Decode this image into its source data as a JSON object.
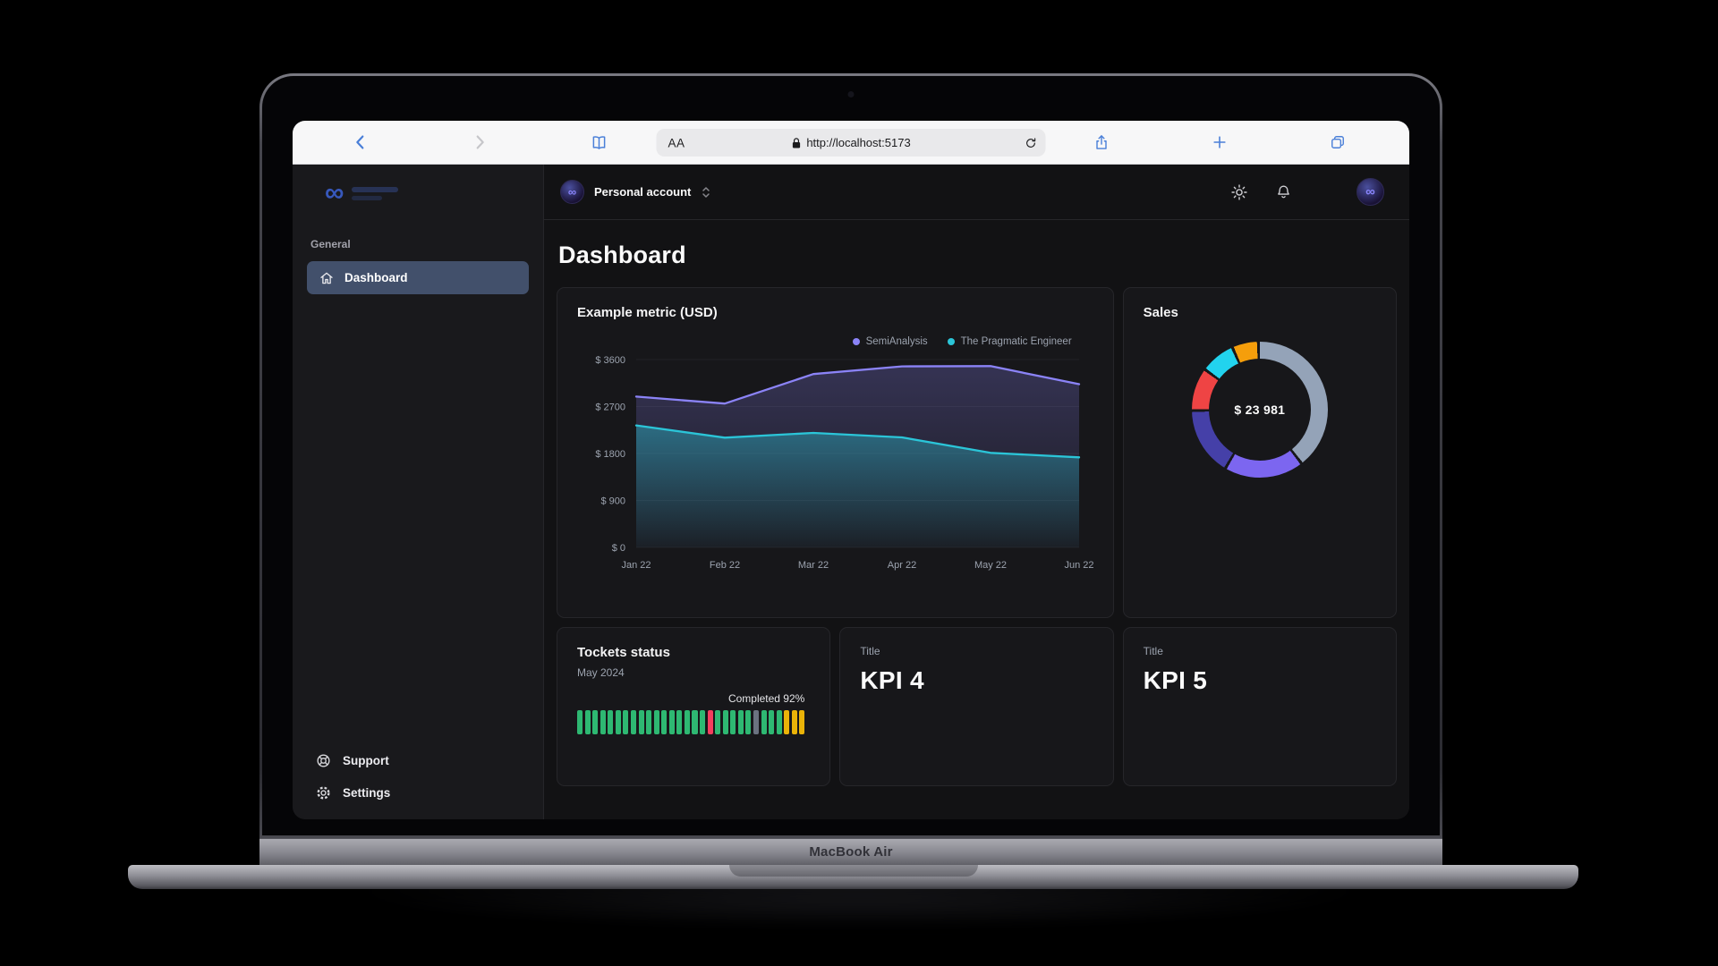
{
  "laptop": {
    "brand_label": "MacBook Air"
  },
  "browser": {
    "reader_label": "AA",
    "url": "http://localhost:5173"
  },
  "sidebar": {
    "section_label": "General",
    "items": [
      {
        "label": "Dashboard",
        "active": true
      }
    ],
    "footer_items": [
      {
        "label": "Support"
      },
      {
        "label": "Settings"
      }
    ]
  },
  "header": {
    "account_label": "Personal account"
  },
  "page": {
    "title": "Dashboard"
  },
  "cards": {
    "metric": {
      "title": "Example metric (USD)"
    },
    "sales": {
      "title": "Sales"
    },
    "tickets": {
      "title": "Tockets status",
      "subtitle": "May 2024",
      "completed_label": "Completed 92%"
    },
    "kpi4": {
      "label": "Title",
      "value": "KPI 4"
    },
    "kpi5": {
      "label": "Title",
      "value": "KPI 5"
    }
  },
  "chart_data": [
    {
      "type": "area",
      "title": "Example metric (USD)",
      "x": [
        "Jan 22",
        "Feb 22",
        "Mar 22",
        "Apr 22",
        "May 22",
        "Jun 22"
      ],
      "series": [
        {
          "name": "SemiAnalysis",
          "values": [
            2890,
            2756,
            3322,
            3470,
            3475,
            3129
          ],
          "color": "#8b83f7",
          "fill_opacity": 0.26
        },
        {
          "name": "The Pragmatic Engineer",
          "values": [
            2338,
            2103,
            2194,
            2108,
            1812,
            1726
          ],
          "color": "#2bc5d8",
          "fill_opacity": 0.42
        }
      ],
      "ylim": [
        0,
        3600
      ],
      "yticks": [
        0,
        900,
        1800,
        2700,
        3600
      ],
      "ytick_prefix": "$ ",
      "grid": true,
      "legend_position": "top-right"
    },
    {
      "type": "donut",
      "title": "Sales",
      "center_label": "$ 23 981",
      "total": 23981,
      "gap_color": "#17171a",
      "values": [
        {
          "value": 9800,
          "color": "#94a3b8"
        },
        {
          "value": 4567,
          "color": "#7c66f0"
        },
        {
          "value": 3908,
          "color": "#4540a8"
        },
        {
          "value": 2400,
          "color": "#ef4444"
        },
        {
          "value": 1908,
          "color": "#22d3ee"
        },
        {
          "value": 1398,
          "color": "#f59e0b"
        }
      ]
    },
    {
      "type": "progress",
      "title": "Tockets status",
      "completed_pct": 92,
      "palette": {
        "green": "#2eb872",
        "red": "#f43f5e",
        "gray": "#6b7280",
        "yellow": "#eab308"
      },
      "segments": [
        "green",
        "green",
        "green",
        "green",
        "green",
        "green",
        "green",
        "green",
        "green",
        "green",
        "green",
        "green",
        "green",
        "green",
        "green",
        "green",
        "green",
        "red",
        "green",
        "green",
        "green",
        "green",
        "green",
        "gray",
        "green",
        "green",
        "green",
        "yellow",
        "yellow",
        "yellow"
      ]
    }
  ]
}
